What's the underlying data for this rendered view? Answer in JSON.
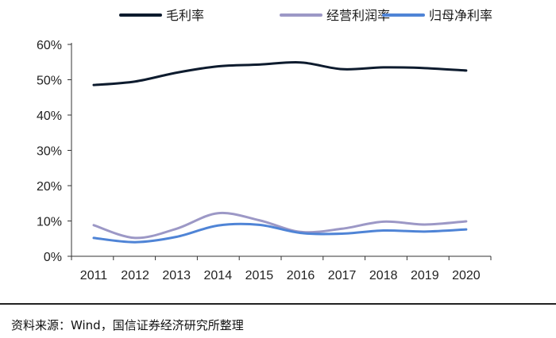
{
  "chart_data": {
    "type": "line",
    "title": "",
    "xlabel": "",
    "ylabel": "",
    "x": [
      "2011",
      "2012",
      "2013",
      "2014",
      "2015",
      "2016",
      "2017",
      "2018",
      "2019",
      "2020"
    ],
    "yticks": [
      "0%",
      "10%",
      "20%",
      "30%",
      "40%",
      "50%",
      "60%"
    ],
    "ylim": [
      0,
      60
    ],
    "grid": false,
    "legend_position": "top",
    "series": [
      {
        "name": "毛利率",
        "color": "#0d1b2e",
        "values": [
          48.5,
          49.5,
          52.0,
          53.8,
          54.3,
          54.9,
          53.0,
          53.5,
          53.3,
          52.6
        ]
      },
      {
        "name": "经营利润率",
        "color": "#9c98c6",
        "values": [
          8.8,
          5.2,
          7.8,
          12.2,
          10.2,
          6.9,
          7.8,
          9.8,
          9.0,
          9.9
        ]
      },
      {
        "name": "归母净利率",
        "color": "#4f84d6",
        "values": [
          5.2,
          4.0,
          5.5,
          8.7,
          8.9,
          6.6,
          6.4,
          7.3,
          7.0,
          7.6
        ]
      }
    ]
  },
  "source_text": "资料来源：Wind，国信证券经济研究所整理"
}
